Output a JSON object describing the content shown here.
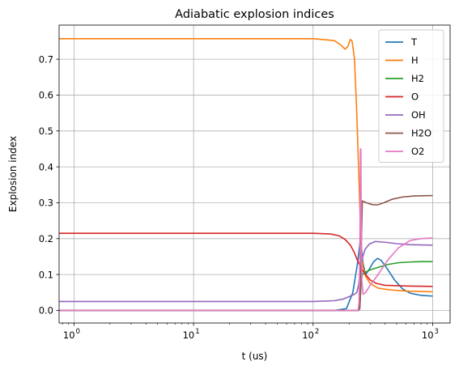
{
  "chart_data": {
    "type": "line",
    "title": "Adiabatic explosion indices",
    "xlabel": "t (us)",
    "ylabel": "Explosion index",
    "xscale": "log",
    "xlim": [
      0.75,
      1400
    ],
    "ylim": [
      -0.035,
      0.795
    ],
    "xticks": [
      {
        "value": 1,
        "label": "10",
        "exp": "0"
      },
      {
        "value": 10,
        "label": "10",
        "exp": "1"
      },
      {
        "value": 100,
        "label": "10",
        "exp": "2"
      },
      {
        "value": 1000,
        "label": "10",
        "exp": "3"
      }
    ],
    "yticks": [
      {
        "value": 0.0,
        "label": "0.0"
      },
      {
        "value": 0.1,
        "label": "0.1"
      },
      {
        "value": 0.2,
        "label": "0.2"
      },
      {
        "value": 0.3,
        "label": "0.3"
      },
      {
        "value": 0.4,
        "label": "0.4"
      },
      {
        "value": 0.5,
        "label": "0.5"
      },
      {
        "value": 0.6,
        "label": "0.6"
      },
      {
        "value": 0.7,
        "label": "0.7"
      }
    ],
    "grid": true,
    "legend_position": "top-right",
    "series": [
      {
        "name": "T",
        "color": "#1f77b4",
        "points": [
          [
            0.75,
            0.0
          ],
          [
            150,
            0.0
          ],
          [
            190,
            0.005
          ],
          [
            215,
            0.05
          ],
          [
            235,
            0.13
          ],
          [
            248,
            0.195
          ],
          [
            255,
            0.17
          ],
          [
            262,
            0.13
          ],
          [
            275,
            0.1
          ],
          [
            295,
            0.115
          ],
          [
            320,
            0.135
          ],
          [
            345,
            0.145
          ],
          [
            370,
            0.14
          ],
          [
            410,
            0.12
          ],
          [
            480,
            0.085
          ],
          [
            560,
            0.06
          ],
          [
            650,
            0.048
          ],
          [
            800,
            0.042
          ],
          [
            1000,
            0.04
          ]
        ]
      },
      {
        "name": "H",
        "color": "#ff7f0e",
        "points": [
          [
            0.75,
            0.757
          ],
          [
            100,
            0.757
          ],
          [
            150,
            0.752
          ],
          [
            170,
            0.74
          ],
          [
            185,
            0.728
          ],
          [
            195,
            0.735
          ],
          [
            205,
            0.755
          ],
          [
            212,
            0.75
          ],
          [
            222,
            0.7
          ],
          [
            232,
            0.55
          ],
          [
            240,
            0.4
          ],
          [
            248,
            0.25
          ],
          [
            255,
            0.15
          ],
          [
            262,
            0.12
          ],
          [
            275,
            0.095
          ],
          [
            300,
            0.075
          ],
          [
            350,
            0.062
          ],
          [
            450,
            0.057
          ],
          [
            600,
            0.054
          ],
          [
            1000,
            0.052
          ]
        ]
      },
      {
        "name": "H2",
        "color": "#2ca02c",
        "points": [
          [
            0.75,
            0.0
          ],
          [
            240,
            0.0
          ],
          [
            247,
            0.02
          ],
          [
            252,
            0.075
          ],
          [
            258,
            0.1
          ],
          [
            270,
            0.105
          ],
          [
            300,
            0.113
          ],
          [
            350,
            0.12
          ],
          [
            420,
            0.128
          ],
          [
            520,
            0.133
          ],
          [
            650,
            0.135
          ],
          [
            800,
            0.136
          ],
          [
            1000,
            0.136
          ]
        ]
      },
      {
        "name": "O",
        "color": "#d62728",
        "points": [
          [
            0.75,
            0.215
          ],
          [
            100,
            0.215
          ],
          [
            140,
            0.213
          ],
          [
            165,
            0.208
          ],
          [
            185,
            0.198
          ],
          [
            205,
            0.182
          ],
          [
            222,
            0.16
          ],
          [
            238,
            0.135
          ],
          [
            255,
            0.115
          ],
          [
            275,
            0.1
          ],
          [
            300,
            0.085
          ],
          [
            340,
            0.075
          ],
          [
            400,
            0.07
          ],
          [
            600,
            0.068
          ],
          [
            1000,
            0.067
          ]
        ]
      },
      {
        "name": "OH",
        "color": "#9467bd",
        "points": [
          [
            0.75,
            0.025
          ],
          [
            100,
            0.025
          ],
          [
            150,
            0.027
          ],
          [
            180,
            0.032
          ],
          [
            205,
            0.04
          ],
          [
            222,
            0.045
          ],
          [
            232,
            0.05
          ],
          [
            240,
            0.07
          ],
          [
            248,
            0.11
          ],
          [
            258,
            0.145
          ],
          [
            272,
            0.17
          ],
          [
            295,
            0.185
          ],
          [
            330,
            0.192
          ],
          [
            400,
            0.19
          ],
          [
            500,
            0.186
          ],
          [
            650,
            0.183
          ],
          [
            1000,
            0.182
          ]
        ]
      },
      {
        "name": "H2O",
        "color": "#8c564b",
        "points": [
          [
            0.75,
            0.0
          ],
          [
            240,
            0.0
          ],
          [
            246,
            0.005
          ],
          [
            250,
            0.06
          ],
          [
            254,
            0.2
          ],
          [
            258,
            0.305
          ],
          [
            280,
            0.3
          ],
          [
            310,
            0.295
          ],
          [
            345,
            0.294
          ],
          [
            390,
            0.3
          ],
          [
            460,
            0.31
          ],
          [
            560,
            0.316
          ],
          [
            700,
            0.319
          ],
          [
            1000,
            0.32
          ]
        ]
      },
      {
        "name": "O2",
        "color": "#e377c2",
        "points": [
          [
            0.75,
            0.0
          ],
          [
            238,
            0.0
          ],
          [
            242,
            0.02
          ],
          [
            246,
            0.15
          ],
          [
            249,
            0.45
          ],
          [
            251,
            0.45
          ],
          [
            253,
            0.25
          ],
          [
            256,
            0.08
          ],
          [
            262,
            0.045
          ],
          [
            275,
            0.05
          ],
          [
            300,
            0.07
          ],
          [
            350,
            0.1
          ],
          [
            420,
            0.14
          ],
          [
            520,
            0.175
          ],
          [
            650,
            0.195
          ],
          [
            800,
            0.2
          ],
          [
            1000,
            0.202
          ]
        ]
      }
    ]
  }
}
